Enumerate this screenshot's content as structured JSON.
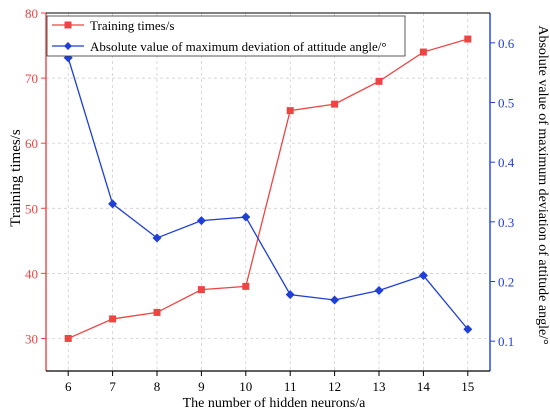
{
  "chart_data": {
    "type": "line",
    "xlabel": "The number of hidden neurons/a",
    "ylabel_left": "Training times/s",
    "ylabel_right": "Absolute value of maximum deviation of attitude angle/°",
    "x": [
      6,
      7,
      8,
      9,
      10,
      11,
      12,
      13,
      14,
      15
    ],
    "x_tick_labels": [
      "6",
      "7",
      "8",
      "9",
      "10",
      "11",
      "12",
      "13",
      "14",
      "15"
    ],
    "xlim": [
      5.5,
      15.5
    ],
    "ylim_left": [
      25,
      80
    ],
    "ylim_right": [
      0.05,
      0.65
    ],
    "yticks_left": [
      30,
      40,
      50,
      60,
      70,
      80
    ],
    "yticks_right": [
      0.1,
      0.2,
      0.3,
      0.4,
      0.5,
      0.6
    ],
    "grid": true,
    "legend_position": "top-left",
    "series": [
      {
        "name": "Training times/s",
        "axis": "left",
        "color": "#ee4444",
        "marker": "square",
        "values": [
          30,
          33,
          34,
          37.5,
          38,
          65,
          66,
          69.5,
          74,
          76
        ]
      },
      {
        "name": "Absolute value of maximum deviation of attitude angle/°",
        "axis": "right",
        "color": "#1f3fd6",
        "marker": "diamond",
        "values": [
          0.575,
          0.33,
          0.273,
          0.302,
          0.308,
          0.178,
          0.169,
          0.185,
          0.21,
          0.12
        ]
      }
    ]
  }
}
